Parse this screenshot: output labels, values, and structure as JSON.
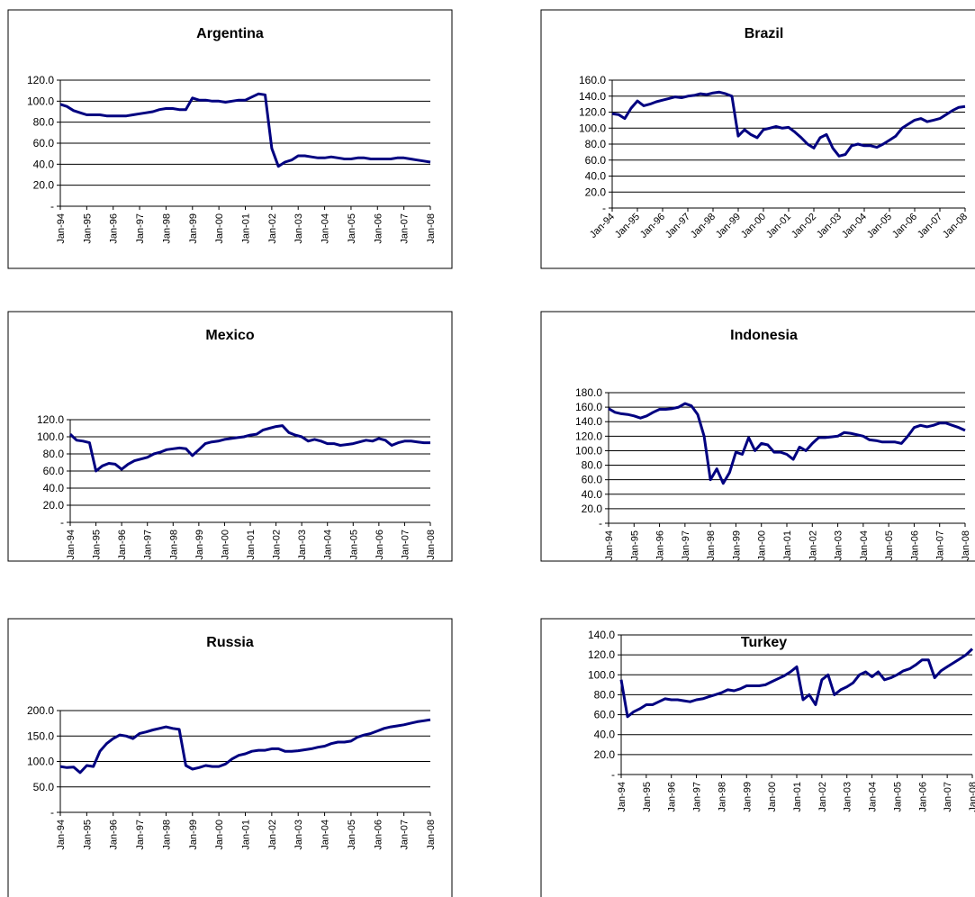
{
  "chart_data": [
    {
      "type": "line",
      "title": "Argentina",
      "color": "#000080",
      "grid": true,
      "x": [
        "Jan-94",
        null,
        null,
        null,
        "Jan-95",
        null,
        null,
        null,
        "Jan-96",
        null,
        null,
        null,
        "Jan-97",
        null,
        null,
        null,
        "Jan-98",
        null,
        null,
        null,
        "Jan-99",
        null,
        null,
        null,
        "Jan-00",
        null,
        null,
        null,
        "Jan-01",
        null,
        null,
        null,
        "Jan-02",
        null,
        null,
        null,
        "Jan-03",
        null,
        null,
        null,
        "Jan-04",
        null,
        null,
        null,
        "Jan-05",
        null,
        null,
        null,
        "Jan-06",
        null,
        null,
        null,
        "Jan-07",
        null,
        null,
        null,
        "Jan-08"
      ],
      "values": [
        97,
        95,
        91,
        89,
        87,
        87,
        87,
        86,
        86,
        86,
        86,
        87,
        88,
        89,
        90,
        92,
        93,
        93,
        92,
        92,
        103,
        101,
        101,
        100,
        100,
        99,
        100,
        101,
        101,
        104,
        107,
        106,
        55,
        38,
        42,
        44,
        48,
        48,
        47,
        46,
        46,
        47,
        46,
        45,
        45,
        46,
        46,
        45,
        45,
        45,
        45,
        46,
        46,
        45,
        44,
        43,
        42
      ],
      "ylim": [
        0,
        120
      ],
      "yticks": [
        {
          "value": 0,
          "label": "-"
        },
        {
          "value": 20,
          "label": "20.0"
        },
        {
          "value": 40,
          "label": "40.0"
        },
        {
          "value": 60,
          "label": "60.0"
        },
        {
          "value": 80,
          "label": "80.0"
        },
        {
          "value": 100,
          "label": "100.0"
        },
        {
          "value": 120,
          "label": "120.0"
        }
      ]
    },
    {
      "type": "line",
      "title": "Brazil",
      "color": "#000080",
      "grid": true,
      "x": [
        "Jan-94",
        null,
        null,
        null,
        "Jan-95",
        null,
        null,
        null,
        "Jan-96",
        null,
        null,
        null,
        "Jan-97",
        null,
        null,
        null,
        "Jan-98",
        null,
        null,
        null,
        "Jan-99",
        null,
        null,
        null,
        "Jan-00",
        null,
        null,
        null,
        "Jan-01",
        null,
        null,
        null,
        "Jan-02",
        null,
        null,
        null,
        "Jan-03",
        null,
        null,
        null,
        "Jan-04",
        null,
        null,
        null,
        "Jan-05",
        null,
        null,
        null,
        "Jan-06",
        null,
        null,
        null,
        "Jan-07",
        null,
        null,
        null,
        "Jan-08"
      ],
      "values": [
        118,
        117,
        112,
        125,
        134,
        128,
        130,
        133,
        135,
        137,
        139,
        138,
        140,
        141,
        143,
        142,
        144,
        145,
        143,
        140,
        90,
        98,
        92,
        88,
        98,
        100,
        102,
        100,
        101,
        95,
        88,
        80,
        75,
        88,
        92,
        75,
        65,
        67,
        78,
        80,
        78,
        78,
        76,
        80,
        85,
        90,
        100,
        105,
        110,
        112,
        108,
        110,
        112,
        117,
        122,
        126,
        127
      ],
      "ylim": [
        0,
        160
      ],
      "yticks": [
        {
          "value": 0,
          "label": "-"
        },
        {
          "value": 20,
          "label": "20.0"
        },
        {
          "value": 40,
          "label": "40.0"
        },
        {
          "value": 60,
          "label": "60.0"
        },
        {
          "value": 80,
          "label": "80.0"
        },
        {
          "value": 100,
          "label": "100.0"
        },
        {
          "value": 120,
          "label": "120.0"
        },
        {
          "value": 140,
          "label": "140.0"
        },
        {
          "value": 160,
          "label": "160.0"
        }
      ]
    },
    {
      "type": "line",
      "title": "Mexico",
      "color": "#000080",
      "grid": true,
      "x": [
        "Jan-94",
        null,
        null,
        null,
        "Jan-95",
        null,
        null,
        null,
        "Jan-96",
        null,
        null,
        null,
        "Jan-97",
        null,
        null,
        null,
        "Jan-98",
        null,
        null,
        null,
        "Jan-99",
        null,
        null,
        null,
        "Jan-00",
        null,
        null,
        null,
        "Jan-01",
        null,
        null,
        null,
        "Jan-02",
        null,
        null,
        null,
        "Jan-03",
        null,
        null,
        null,
        "Jan-04",
        null,
        null,
        null,
        "Jan-05",
        null,
        null,
        null,
        "Jan-06",
        null,
        null,
        null,
        "Jan-07",
        null,
        null,
        null,
        "Jan-08"
      ],
      "values": [
        103,
        96,
        95,
        93,
        60,
        66,
        69,
        68,
        62,
        68,
        72,
        74,
        76,
        80,
        82,
        85,
        86,
        87,
        86,
        78,
        85,
        92,
        94,
        95,
        97,
        98,
        99,
        100,
        102,
        103,
        108,
        110,
        112,
        113,
        105,
        102,
        100,
        95,
        97,
        95,
        92,
        92,
        90,
        91,
        92,
        94,
        96,
        95,
        98,
        96,
        90,
        93,
        95,
        95,
        94,
        93,
        93
      ],
      "ylim": [
        0,
        120
      ],
      "yticks": [
        {
          "value": 0,
          "label": "-"
        },
        {
          "value": 20,
          "label": "20.0"
        },
        {
          "value": 40,
          "label": "40.0"
        },
        {
          "value": 60,
          "label": "60.0"
        },
        {
          "value": 80,
          "label": "80.0"
        },
        {
          "value": 100,
          "label": "100.0"
        },
        {
          "value": 120,
          "label": "120.0"
        }
      ]
    },
    {
      "type": "line",
      "title": "Indonesia",
      "color": "#000080",
      "grid": true,
      "x": [
        "Jan-94",
        null,
        null,
        null,
        "Jan-95",
        null,
        null,
        null,
        "Jan-96",
        null,
        null,
        null,
        "Jan-97",
        null,
        null,
        null,
        "Jan-98",
        null,
        null,
        null,
        "Jan-99",
        null,
        null,
        null,
        "Jan-00",
        null,
        null,
        null,
        "Jan-01",
        null,
        null,
        null,
        "Jan-02",
        null,
        null,
        null,
        "Jan-03",
        null,
        null,
        null,
        "Jan-04",
        null,
        null,
        null,
        "Jan-05",
        null,
        null,
        null,
        "Jan-06",
        null,
        null,
        null,
        "Jan-07",
        null,
        null,
        null,
        "Jan-08"
      ],
      "values": [
        158,
        153,
        151,
        150,
        148,
        145,
        148,
        153,
        157,
        157,
        158,
        160,
        165,
        162,
        150,
        120,
        60,
        75,
        55,
        70,
        98,
        95,
        118,
        100,
        110,
        108,
        98,
        98,
        95,
        88,
        105,
        100,
        110,
        118,
        118,
        119,
        120,
        125,
        124,
        122,
        120,
        115,
        114,
        112,
        112,
        112,
        110,
        120,
        132,
        135,
        133,
        135,
        138,
        138,
        135,
        132,
        128
      ],
      "ylim": [
        0,
        180
      ],
      "yticks": [
        {
          "value": 0,
          "label": "-"
        },
        {
          "value": 20,
          "label": "20.0"
        },
        {
          "value": 40,
          "label": "40.0"
        },
        {
          "value": 60,
          "label": "60.0"
        },
        {
          "value": 80,
          "label": "80.0"
        },
        {
          "value": 100,
          "label": "100.0"
        },
        {
          "value": 120,
          "label": "120.0"
        },
        {
          "value": 140,
          "label": "140.0"
        },
        {
          "value": 160,
          "label": "160.0"
        },
        {
          "value": 180,
          "label": "180.0"
        }
      ]
    },
    {
      "type": "line",
      "title": "Russia",
      "color": "#000080",
      "grid": true,
      "x": [
        "Jan-94",
        null,
        null,
        null,
        "Jan-95",
        null,
        null,
        null,
        "Jan-96",
        null,
        null,
        null,
        "Jan-97",
        null,
        null,
        null,
        "Jan-98",
        null,
        null,
        null,
        "Jan-99",
        null,
        null,
        null,
        "Jan-00",
        null,
        null,
        null,
        "Jan-01",
        null,
        null,
        null,
        "Jan-02",
        null,
        null,
        null,
        "Jan-03",
        null,
        null,
        null,
        "Jan-04",
        null,
        null,
        null,
        "Jan-05",
        null,
        null,
        null,
        "Jan-06",
        null,
        null,
        null,
        "Jan-07",
        null,
        null,
        null,
        "Jan-08"
      ],
      "values": [
        90,
        88,
        89,
        78,
        92,
        90,
        120,
        135,
        145,
        152,
        150,
        145,
        155,
        158,
        162,
        165,
        168,
        165,
        163,
        92,
        85,
        88,
        92,
        90,
        90,
        95,
        105,
        112,
        115,
        120,
        122,
        122,
        125,
        125,
        120,
        120,
        121,
        123,
        125,
        128,
        130,
        135,
        138,
        138,
        140,
        148,
        152,
        155,
        160,
        165,
        168,
        170,
        172,
        175,
        178,
        180,
        182
      ],
      "ylim": [
        0,
        200
      ],
      "yticks": [
        {
          "value": 0,
          "label": "-"
        },
        {
          "value": 50,
          "label": "50.0"
        },
        {
          "value": 100,
          "label": "100.0"
        },
        {
          "value": 150,
          "label": "150.0"
        },
        {
          "value": 200,
          "label": "200.0"
        }
      ]
    },
    {
      "type": "line",
      "title": "Turkey",
      "color": "#000080",
      "grid": true,
      "x": [
        "Jan-94",
        null,
        null,
        null,
        "Jan-95",
        null,
        null,
        null,
        "Jan-96",
        null,
        null,
        null,
        "Jan-97",
        null,
        null,
        null,
        "Jan-98",
        null,
        null,
        null,
        "Jan-99",
        null,
        null,
        null,
        "Jan-00",
        null,
        null,
        null,
        "Jan-01",
        null,
        null,
        null,
        "Jan-02",
        null,
        null,
        null,
        "Jan-03",
        null,
        null,
        null,
        "Jan-04",
        null,
        null,
        null,
        "Jan-05",
        null,
        null,
        null,
        "Jan-06",
        null,
        null,
        null,
        "Jan-07",
        null,
        null,
        null,
        "Jan-08"
      ],
      "values": [
        95,
        58,
        63,
        66,
        70,
        70,
        73,
        76,
        75,
        75,
        74,
        73,
        75,
        76,
        78,
        80,
        82,
        85,
        84,
        86,
        89,
        89,
        89,
        90,
        93,
        96,
        99,
        103,
        108,
        75,
        80,
        70,
        95,
        100,
        80,
        85,
        88,
        92,
        100,
        103,
        98,
        103,
        95,
        97,
        100,
        104,
        106,
        110,
        115,
        115,
        97,
        104,
        108,
        112,
        116,
        120,
        126
      ],
      "ylim": [
        0,
        140
      ],
      "yticks": [
        {
          "value": 0,
          "label": "-"
        },
        {
          "value": 20,
          "label": "20.0"
        },
        {
          "value": 40,
          "label": "40.0"
        },
        {
          "value": 60,
          "label": "60.0"
        },
        {
          "value": 80,
          "label": "80.0"
        },
        {
          "value": 100,
          "label": "100.0"
        },
        {
          "value": 120,
          "label": "120.0"
        },
        {
          "value": 140,
          "label": "140.0"
        }
      ]
    }
  ]
}
